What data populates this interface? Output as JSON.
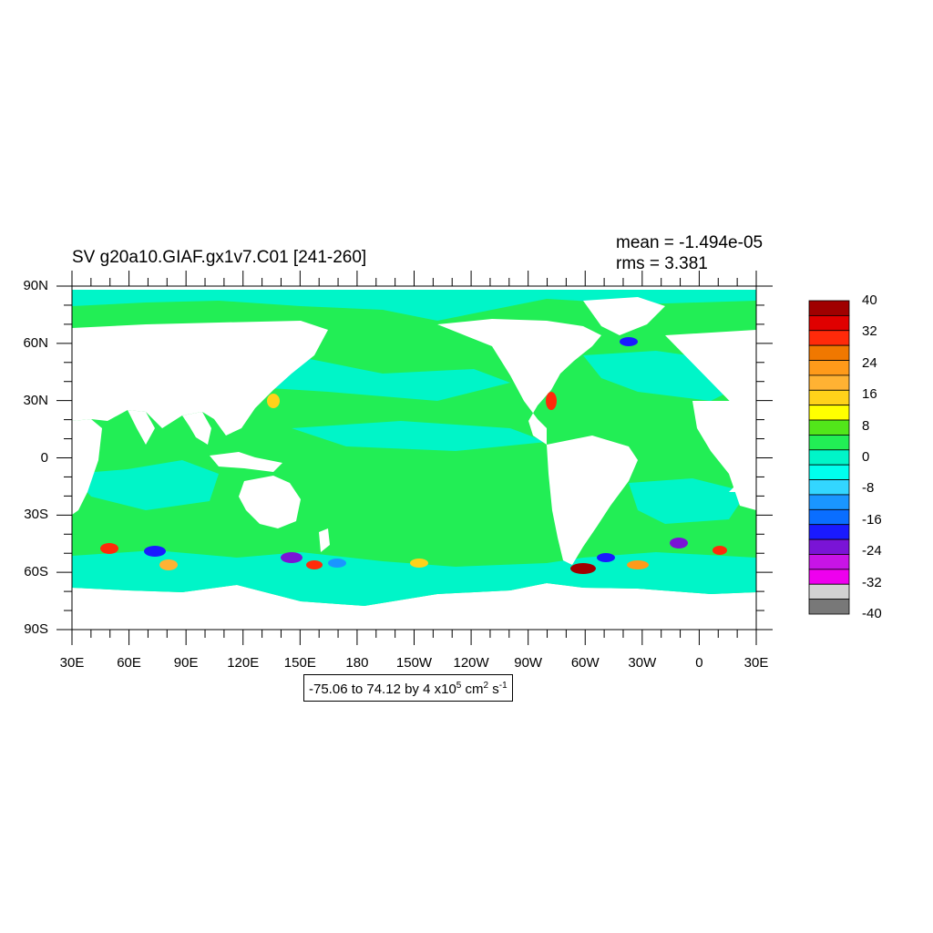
{
  "header": {
    "title": "SV g20a10.GIAF.gx1v7.C01 [241-260]",
    "mean": "mean = -1.494e-05",
    "rms": "rms = 3.381"
  },
  "axes": {
    "y_ticks": [
      "90N",
      "60N",
      "30N",
      "0",
      "30S",
      "60S",
      "90S"
    ],
    "x_ticks": [
      "30E",
      "60E",
      "90E",
      "120E",
      "150E",
      "180",
      "150W",
      "120W",
      "90W",
      "60W",
      "30W",
      "0",
      "30E"
    ]
  },
  "colorbar": {
    "labels": [
      "40",
      "32",
      "24",
      "16",
      "8",
      "0",
      "-8",
      "-16",
      "-24",
      "-32",
      "-40"
    ],
    "colors": [
      "#a00000",
      "#e00000",
      "#ff2a0a",
      "#f07800",
      "#ff9a1a",
      "#ffb233",
      "#ffd21a",
      "#ffff00",
      "#52e61a",
      "#22ee55",
      "#00f5c8",
      "#00ffee",
      "#33d6ff",
      "#1a96ff",
      "#0a6eff",
      "#1a1aff",
      "#7a14d6",
      "#c814e6",
      "#ee00ee",
      "#d2d2d2",
      "#787878"
    ]
  },
  "info_box": {
    "prefix": "-75.06 to 74.12 by 4 x10",
    "exp1": "5",
    "mid": " cm",
    "exp2": "2",
    "tail": " s",
    "exp3": "-1"
  },
  "map_colors": {
    "ocean_main": "#22ee55",
    "ocean_light": "#00f5c8",
    "land": "#ffffff"
  }
}
